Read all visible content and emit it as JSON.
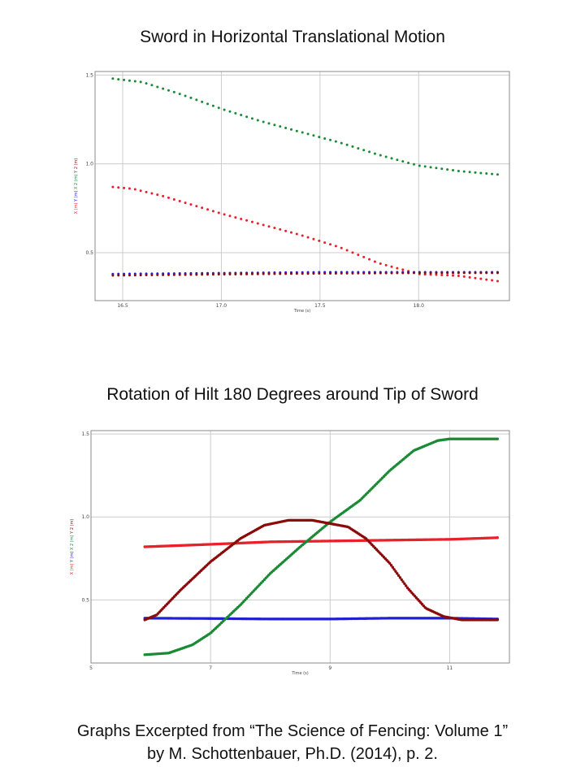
{
  "titles": {
    "top": "Sword in Horizontal Translational Motion",
    "bottom": "Rotation of Hilt 180 Degrees around Tip of Sword"
  },
  "caption": {
    "line1": "Graphs Excerpted from “The Science of Fencing: Volume 1”",
    "line2": "by M. Schottenbauer, Ph.D. (2014), p. 2."
  },
  "colors": {
    "x1": "#e8202a",
    "y1": "#2020d0",
    "x2": "#1a8a34",
    "y2": "#8b0a0a",
    "grid": "#cccccc",
    "frame": "#888888"
  },
  "chart_data": [
    {
      "type": "scatter",
      "title": "Sword in Horizontal Translational Motion",
      "xlabel": "Time (s)",
      "ylabel_parts": [
        "X (m)",
        "Y (m)",
        "X 2 (m)",
        "Y 2 (m)"
      ],
      "xlim": [
        16.36,
        18.46
      ],
      "ylim": [
        0.23,
        1.52
      ],
      "xticks": [
        16.5,
        17.0,
        17.5,
        18.0
      ],
      "xtick_labels": [
        "16.5",
        "17.0",
        "17.5",
        "18.0"
      ],
      "yticks": [
        0.5,
        1.0,
        1.5
      ],
      "ytick_labels": [
        "0.5",
        "1.0",
        "1.5"
      ],
      "x_range": [
        16.45,
        18.4
      ],
      "n_points": 70,
      "style": "dots",
      "series": [
        {
          "name": "X (m)",
          "color": "#e8202a",
          "x": [
            16.45,
            16.55,
            16.7,
            16.85,
            17.0,
            17.2,
            17.4,
            17.6,
            17.8,
            18.0,
            18.2,
            18.4
          ],
          "y": [
            0.87,
            0.86,
            0.82,
            0.77,
            0.72,
            0.66,
            0.6,
            0.53,
            0.44,
            0.38,
            0.37,
            0.34
          ]
        },
        {
          "name": "Y (m)",
          "color": "#2020d0",
          "x": [
            16.45,
            17.0,
            17.5,
            18.0,
            18.4
          ],
          "y": [
            0.38,
            0.385,
            0.39,
            0.39,
            0.39
          ]
        },
        {
          "name": "X 2 (m)",
          "color": "#1a8a34",
          "x": [
            16.45,
            16.6,
            16.8,
            17.0,
            17.2,
            17.4,
            17.6,
            17.8,
            18.0,
            18.2,
            18.4
          ],
          "y": [
            1.48,
            1.46,
            1.39,
            1.31,
            1.24,
            1.18,
            1.12,
            1.05,
            0.99,
            0.96,
            0.94
          ]
        },
        {
          "name": "Y 2 (m)",
          "color": "#8b0a0a",
          "x": [
            16.45,
            17.0,
            17.5,
            18.0,
            18.4
          ],
          "y": [
            0.372,
            0.378,
            0.383,
            0.386,
            0.386
          ]
        }
      ]
    },
    {
      "type": "scatter",
      "title": "Rotation of Hilt 180 Degrees around Tip of Sword",
      "xlabel": "Time (s)",
      "ylabel_parts": [
        "X (m)",
        "Y (m)",
        "X 2 (m)",
        "Y 2 (m)"
      ],
      "xlim": [
        5.0,
        12.0
      ],
      "ylim": [
        0.12,
        1.52
      ],
      "xticks": [
        5,
        7,
        9,
        11
      ],
      "xtick_labels": [
        "5",
        "7",
        "9",
        "11"
      ],
      "yticks": [
        0.5,
        1.0,
        1.5
      ],
      "ytick_labels": [
        "0.5",
        "1.0",
        "1.5"
      ],
      "x_range": [
        5.9,
        11.8
      ],
      "n_points": 240,
      "style": "dense",
      "series": [
        {
          "name": "X (m)",
          "color": "#e8202a",
          "x": [
            5.9,
            7.0,
            8.0,
            9.0,
            10.0,
            11.0,
            11.8
          ],
          "y": [
            0.82,
            0.835,
            0.85,
            0.855,
            0.86,
            0.865,
            0.875
          ]
        },
        {
          "name": "Y (m)",
          "color": "#2020d0",
          "x": [
            5.9,
            7.0,
            8.0,
            9.0,
            10.0,
            11.0,
            11.8
          ],
          "y": [
            0.39,
            0.388,
            0.385,
            0.385,
            0.39,
            0.39,
            0.385
          ]
        },
        {
          "name": "X 2 (m)",
          "color": "#1a8a34",
          "x": [
            5.9,
            6.3,
            6.7,
            7.0,
            7.5,
            8.0,
            8.5,
            9.0,
            9.5,
            10.0,
            10.4,
            10.8,
            11.0,
            11.2,
            11.8
          ],
          "y": [
            0.17,
            0.18,
            0.23,
            0.3,
            0.47,
            0.66,
            0.82,
            0.97,
            1.1,
            1.28,
            1.4,
            1.46,
            1.47,
            1.47,
            1.47
          ]
        },
        {
          "name": "Y 2 (m)",
          "color": "#8b0a0a",
          "x": [
            5.9,
            6.1,
            6.5,
            7.0,
            7.5,
            7.9,
            8.3,
            8.7,
            9.0,
            9.3,
            9.6,
            10.0,
            10.3,
            10.6,
            10.9,
            11.2,
            11.8
          ],
          "y": [
            0.38,
            0.41,
            0.56,
            0.73,
            0.87,
            0.95,
            0.98,
            0.98,
            0.96,
            0.94,
            0.87,
            0.72,
            0.57,
            0.45,
            0.4,
            0.38,
            0.38
          ]
        }
      ]
    }
  ]
}
